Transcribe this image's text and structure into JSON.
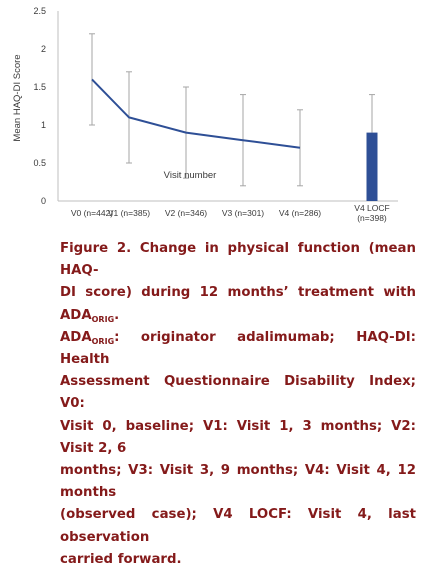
{
  "chart_data": {
    "type": "line",
    "ylabel": "Mean HAQ-DI Score",
    "xlabel": "Visit number",
    "ylim": [
      0,
      2.5
    ],
    "yticks": [
      "0",
      "0.5",
      "1",
      "1.5",
      "2",
      "2.5"
    ],
    "grid": false,
    "categories": [
      "V0 (n=442)",
      "V1 (n=385)",
      "V2 (n=346)",
      "V3 (n=301)",
      "V4 (n=286)"
    ],
    "series": [
      {
        "type": "line",
        "values": [
          1.6,
          1.1,
          0.9,
          0.8,
          0.7
        ],
        "error": [
          0.6,
          0.6,
          0.6,
          0.6,
          0.5
        ],
        "color": "#2e4f96"
      },
      {
        "type": "bar",
        "category": [
          "V4 LOCF",
          "(n=398)"
        ],
        "value": 0.9,
        "error": 0.5,
        "color": "#2e4f96"
      }
    ],
    "error_bar_color": "#a6a6a6",
    "axis_color": "#bfbfbf"
  },
  "caption": {
    "line1": "Figure 2. Change in physical function (mean HAQ-",
    "line2_a": "DI score) during 12 months’ treatment with ADA",
    "line2_sub": "ORIG",
    "line2_b": ".",
    "line3_a": "ADA",
    "line3_sub": "ORIG",
    "line3_b": ": originator adalimumab; HAQ-DI: Health",
    "line4": "Assessment Questionnaire Disability Index; V0:",
    "line5": "Visit 0, baseline; V1: Visit 1, 3 months; V2: Visit 2, 6",
    "line6": "months; V3: Visit 3, 9 months; V4: Visit 4, 12 months",
    "line7": "(observed case); V4 LOCF: Visit 4, last observation",
    "line8": "carried forward."
  }
}
